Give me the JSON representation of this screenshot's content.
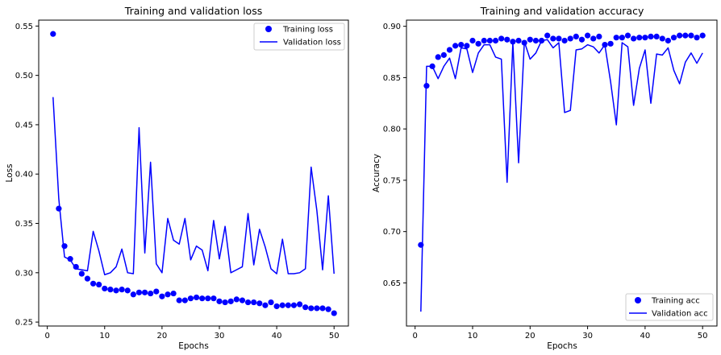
{
  "chart_data": [
    {
      "type": "line",
      "title": "Training and validation loss",
      "xlabel": "Epochs",
      "ylabel": "Loss",
      "xlim": [
        -1.5,
        52.5
      ],
      "ylim": [
        0.246,
        0.556
      ],
      "xticks": [
        0,
        10,
        20,
        30,
        40,
        50
      ],
      "yticks": [
        0.25,
        0.3,
        0.35,
        0.4,
        0.45,
        0.5,
        0.55
      ],
      "xtick_labels": [
        "0",
        "10",
        "20",
        "30",
        "40",
        "50"
      ],
      "ytick_labels": [
        "0.25",
        "0.30",
        "0.35",
        "0.40",
        "0.45",
        "0.50",
        "0.55"
      ],
      "legend_position": "top-right",
      "grid": false,
      "x": [
        1,
        2,
        3,
        4,
        5,
        6,
        7,
        8,
        9,
        10,
        11,
        12,
        13,
        14,
        15,
        16,
        17,
        18,
        19,
        20,
        21,
        22,
        23,
        24,
        25,
        26,
        27,
        28,
        29,
        30,
        31,
        32,
        33,
        34,
        35,
        36,
        37,
        38,
        39,
        40,
        41,
        42,
        43,
        44,
        45,
        46,
        47,
        48,
        49,
        50
      ],
      "series": [
        {
          "name": "Training loss",
          "style": "points",
          "color": "#0000ff",
          "values": [
            0.542,
            0.365,
            0.327,
            0.314,
            0.306,
            0.299,
            0.294,
            0.289,
            0.288,
            0.284,
            0.283,
            0.282,
            0.283,
            0.282,
            0.278,
            0.28,
            0.28,
            0.279,
            0.281,
            0.276,
            0.278,
            0.279,
            0.272,
            0.272,
            0.274,
            0.275,
            0.274,
            0.274,
            0.274,
            0.271,
            0.27,
            0.271,
            0.273,
            0.272,
            0.27,
            0.27,
            0.269,
            0.267,
            0.27,
            0.266,
            0.267,
            0.267,
            0.267,
            0.268,
            0.265,
            0.264,
            0.264,
            0.264,
            0.263,
            0.259
          ]
        },
        {
          "name": "Validation loss",
          "style": "line",
          "color": "#0000ff",
          "values": [
            0.478,
            0.375,
            0.316,
            0.313,
            0.304,
            0.303,
            0.302,
            0.342,
            0.322,
            0.298,
            0.3,
            0.306,
            0.324,
            0.3,
            0.299,
            0.447,
            0.32,
            0.412,
            0.309,
            0.3,
            0.355,
            0.333,
            0.329,
            0.355,
            0.313,
            0.327,
            0.323,
            0.302,
            0.353,
            0.314,
            0.347,
            0.3,
            0.303,
            0.306,
            0.36,
            0.308,
            0.344,
            0.326,
            0.304,
            0.299,
            0.334,
            0.299,
            0.299,
            0.3,
            0.304,
            0.407,
            0.363,
            0.303,
            0.378,
            0.299
          ]
        }
      ]
    },
    {
      "type": "line",
      "title": "Training and validation accuracy",
      "xlabel": "Epochs",
      "ylabel": "Accuracy",
      "xlim": [
        -1.5,
        52.5
      ],
      "ylim": [
        0.608,
        0.906
      ],
      "xticks": [
        0,
        10,
        20,
        30,
        40,
        50
      ],
      "yticks": [
        0.65,
        0.7,
        0.75,
        0.8,
        0.85,
        0.9
      ],
      "xtick_labels": [
        "0",
        "10",
        "20",
        "30",
        "40",
        "50"
      ],
      "ytick_labels": [
        "0.65",
        "0.70",
        "0.75",
        "0.80",
        "0.85",
        "0.90"
      ],
      "legend_position": "bottom-right",
      "grid": false,
      "x": [
        1,
        2,
        3,
        4,
        5,
        6,
        7,
        8,
        9,
        10,
        11,
        12,
        13,
        14,
        15,
        16,
        17,
        18,
        19,
        20,
        21,
        22,
        23,
        24,
        25,
        26,
        27,
        28,
        29,
        30,
        31,
        32,
        33,
        34,
        35,
        36,
        37,
        38,
        39,
        40,
        41,
        42,
        43,
        44,
        45,
        46,
        47,
        48,
        49,
        50
      ],
      "series": [
        {
          "name": "Training acc",
          "style": "points",
          "color": "#0000ff",
          "values": [
            0.687,
            0.842,
            0.861,
            0.87,
            0.872,
            0.877,
            0.881,
            0.882,
            0.881,
            0.886,
            0.883,
            0.886,
            0.886,
            0.886,
            0.888,
            0.887,
            0.885,
            0.886,
            0.884,
            0.887,
            0.886,
            0.886,
            0.891,
            0.888,
            0.888,
            0.886,
            0.888,
            0.89,
            0.887,
            0.891,
            0.888,
            0.89,
            0.882,
            0.883,
            0.889,
            0.889,
            0.891,
            0.888,
            0.889,
            0.889,
            0.89,
            0.89,
            0.888,
            0.886,
            0.889,
            0.891,
            0.891,
            0.891,
            0.889,
            0.891
          ]
        },
        {
          "name": "Validation acc",
          "style": "line",
          "color": "#0000ff",
          "values": [
            0.622,
            0.861,
            0.861,
            0.849,
            0.861,
            0.869,
            0.849,
            0.879,
            0.878,
            0.855,
            0.874,
            0.882,
            0.882,
            0.87,
            0.868,
            0.748,
            0.884,
            0.767,
            0.885,
            0.868,
            0.874,
            0.886,
            0.887,
            0.879,
            0.884,
            0.816,
            0.818,
            0.877,
            0.878,
            0.882,
            0.88,
            0.874,
            0.882,
            0.846,
            0.804,
            0.884,
            0.88,
            0.823,
            0.859,
            0.877,
            0.825,
            0.873,
            0.872,
            0.879,
            0.857,
            0.844,
            0.865,
            0.874,
            0.864,
            0.874
          ]
        }
      ]
    }
  ]
}
